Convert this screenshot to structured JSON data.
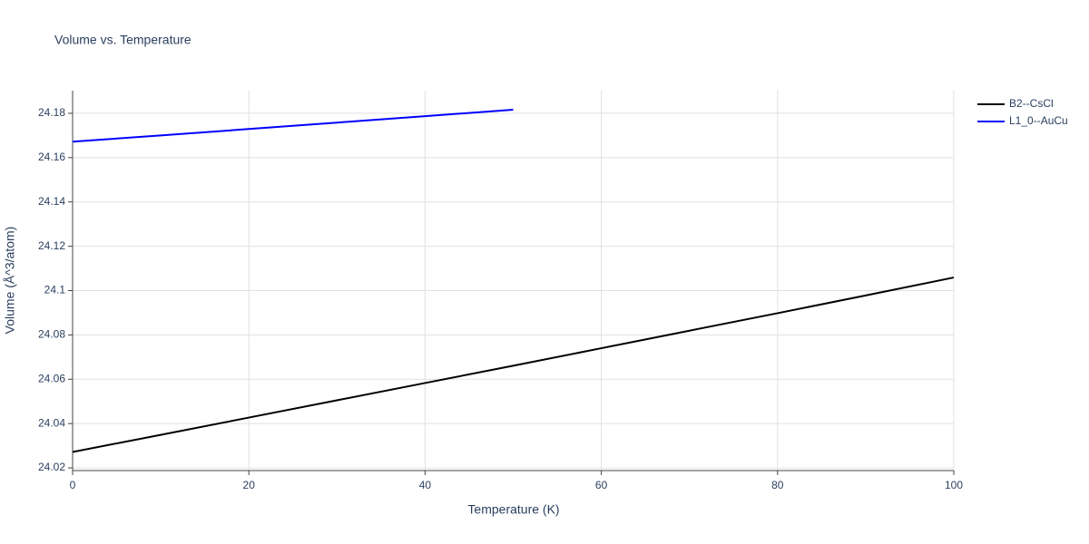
{
  "chart_data": {
    "type": "line",
    "title": "Volume vs. Temperature",
    "x_label": "Temperature (K)",
    "y_label": "Volume (Å^3/atom)",
    "xlim": [
      0,
      100
    ],
    "xticks": [
      0,
      20,
      40,
      60,
      80,
      100
    ],
    "ylim": [
      24.0188,
      24.1902
    ],
    "yticks": [
      24.02,
      24.04,
      24.06,
      24.08,
      24.1,
      24.12,
      24.14,
      24.16,
      24.18
    ],
    "grid": true,
    "legend": "top-right",
    "series": [
      {
        "name": "B2--CsCl",
        "color": "#000000",
        "x": [
          0,
          10,
          20,
          30,
          40,
          50,
          60,
          70,
          80,
          90,
          100
        ],
        "values": [
          24.0272,
          24.0349,
          24.0427,
          24.0505,
          24.0583,
          24.0661,
          24.074,
          24.0819,
          24.0898,
          24.0978,
          24.1059
        ]
      },
      {
        "name": "L1_0--AuCu",
        "color": "#0000ff",
        "x": [
          0,
          10,
          20,
          30,
          40,
          50
        ],
        "values": [
          24.1672,
          24.17,
          24.1729,
          24.1758,
          24.1787,
          24.1816
        ]
      }
    ]
  }
}
